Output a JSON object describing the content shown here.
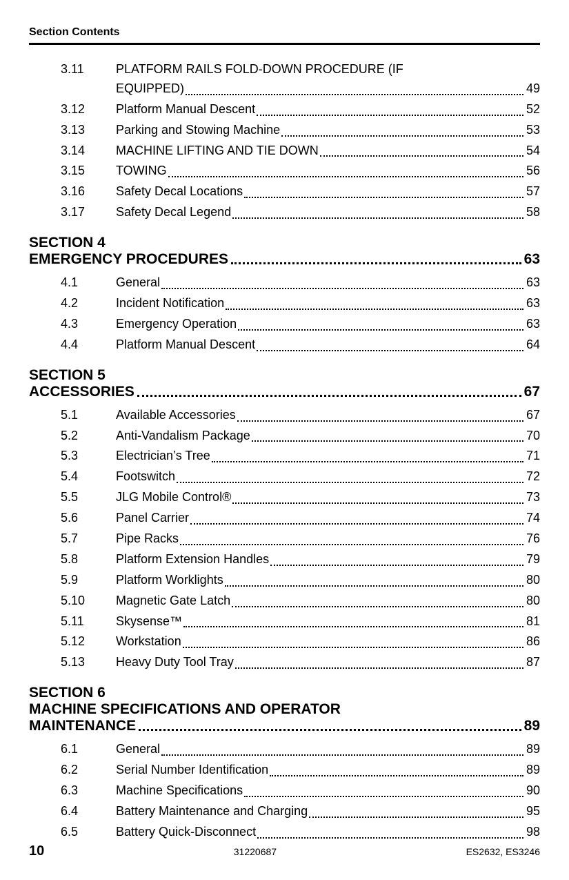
{
  "header": {
    "running_title": "Section Contents"
  },
  "footer": {
    "page_number": "10",
    "doc_id": "31220687",
    "models": "ES2632, ES3246"
  },
  "sections": [
    {
      "heading_line1": null,
      "heading_line2": null,
      "heading_page": null,
      "entries": [
        {
          "num": "3.11",
          "title_line1": "PLATFORM RAILS FOLD-DOWN PROCEDURE (IF",
          "title_line2": "EQUIPPED)",
          "page": "49"
        },
        {
          "num": "3.12",
          "title": "Platform Manual Descent",
          "page": "52"
        },
        {
          "num": "3.13",
          "title": "Parking and Stowing Machine",
          "page": "53"
        },
        {
          "num": "3.14",
          "title": "MACHINE LIFTING AND TIE DOWN",
          "page": "54"
        },
        {
          "num": "3.15",
          "title": "TOWING",
          "page": "56"
        },
        {
          "num": "3.16",
          "title": "Safety Decal Locations",
          "page": "57"
        },
        {
          "num": "3.17",
          "title": "Safety Decal Legend",
          "page": "58"
        }
      ]
    },
    {
      "heading_line1": "SECTION 4",
      "heading_line2": "EMERGENCY PROCEDURES",
      "heading_page": "63",
      "entries": [
        {
          "num": "4.1",
          "title": "General",
          "page": "63"
        },
        {
          "num": "4.2",
          "title": "Incident Notification",
          "page": "63"
        },
        {
          "num": "4.3",
          "title": "Emergency Operation",
          "page": "63"
        },
        {
          "num": "4.4",
          "title": "Platform Manual Descent",
          "page": "64"
        }
      ]
    },
    {
      "heading_line1": "SECTION 5",
      "heading_line2": "ACCESSORIES",
      "heading_page": "67",
      "entries": [
        {
          "num": "5.1",
          "title": "Available Accessories",
          "page": "67"
        },
        {
          "num": "5.2",
          "title": "Anti-Vandalism Package",
          "page": "70"
        },
        {
          "num": "5.3",
          "title": "Electrician’s Tree",
          "page": "71"
        },
        {
          "num": "5.4",
          "title": "Footswitch",
          "page": "72"
        },
        {
          "num": "5.5",
          "title": "JLG Mobile Control®",
          "page": "73"
        },
        {
          "num": "5.6",
          "title": "Panel Carrier",
          "page": "74"
        },
        {
          "num": "5.7",
          "title": "Pipe Racks",
          "page": "76"
        },
        {
          "num": "5.8",
          "title": "Platform Extension Handles",
          "page": "79"
        },
        {
          "num": "5.9",
          "title": "Platform Worklights",
          "page": "80"
        },
        {
          "num": "5.10",
          "title": "Magnetic Gate Latch",
          "page": "80"
        },
        {
          "num": "5.11",
          "title": "Skysense™",
          "page": "81"
        },
        {
          "num": "5.12",
          "title": "Workstation",
          "page": "86"
        },
        {
          "num": "5.13",
          "title": "Heavy Duty Tool Tray",
          "page": "87"
        }
      ]
    },
    {
      "heading_line1": "SECTION 6",
      "heading_line2a": "MACHINE SPECIFICATIONS AND OPERATOR",
      "heading_line2b": "MAINTENANCE",
      "heading_page": "89",
      "entries": [
        {
          "num": "6.1",
          "title": "General",
          "page": "89"
        },
        {
          "num": "6.2",
          "title": "Serial Number Identification",
          "page": "89"
        },
        {
          "num": "6.3",
          "title": "Machine Specifications",
          "page": "90"
        },
        {
          "num": "6.4",
          "title": "Battery Maintenance and Charging",
          "page": "95"
        },
        {
          "num": "6.5",
          "title": "Battery Quick-Disconnect",
          "page": "98"
        }
      ]
    }
  ]
}
